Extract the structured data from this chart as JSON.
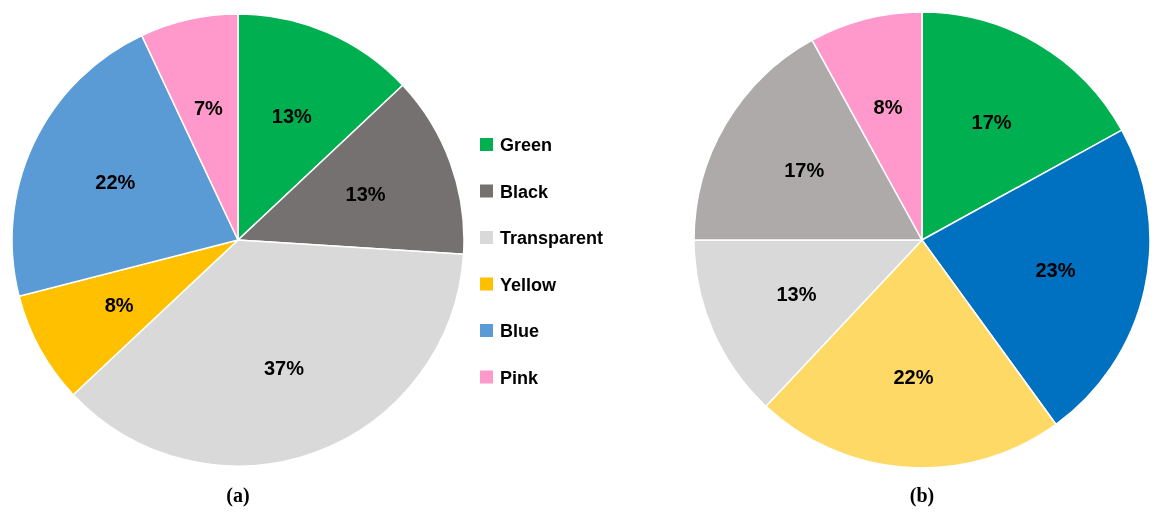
{
  "chart_data": [
    {
      "type": "pie",
      "title": "(a)",
      "categories": [
        "Green",
        "Black",
        "Transparent",
        "Yellow",
        "Blue",
        "Pink"
      ],
      "values": [
        13,
        13,
        37,
        8,
        22,
        7
      ],
      "colors": [
        "#00b050",
        "#767171",
        "#d9d9d9",
        "#ffc000",
        "#5b9bd5",
        "#ff99cc"
      ],
      "value_labels": [
        "13%",
        "13%",
        "37%",
        "8%",
        "22%",
        "7%"
      ],
      "legend": "right"
    },
    {
      "type": "pie",
      "title": "(b)",
      "categories": [
        null,
        null,
        null,
        null,
        null,
        null
      ],
      "values": [
        17,
        23,
        22,
        13,
        17,
        8
      ],
      "colors": [
        "#00b050",
        "#0070c0",
        "#ffd966",
        "#d9d9d9",
        "#aeaaaa",
        "#ff99cc"
      ],
      "value_labels": [
        "17%",
        "23%",
        "22%",
        "13%",
        "17%",
        "8%"
      ],
      "legend": false
    }
  ]
}
